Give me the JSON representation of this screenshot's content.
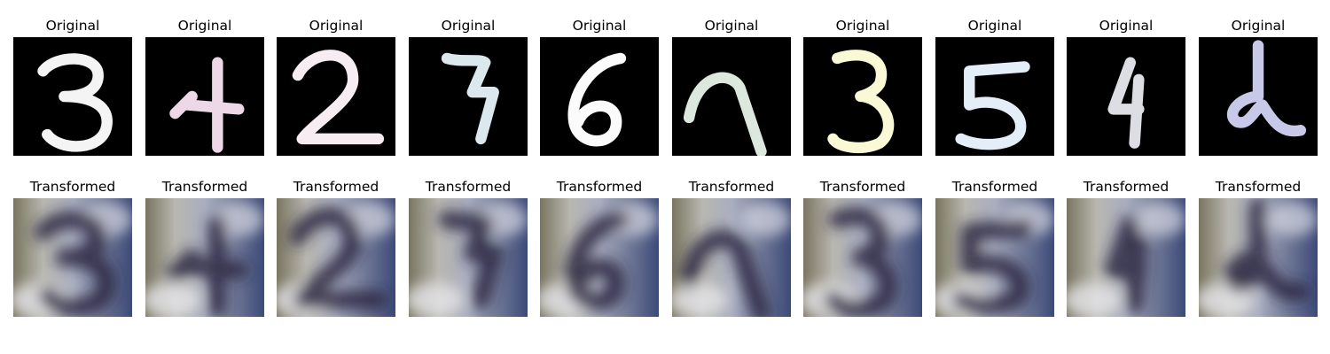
{
  "figure": {
    "original_title": "Original",
    "transformed_title": "Transformed",
    "digits": [
      {
        "digit": "3",
        "ink": "#f4f4f4"
      },
      {
        "digit": "4",
        "ink": "#ecd8e6"
      },
      {
        "digit": "2",
        "ink": "#f6ecf2"
      },
      {
        "digit": "7",
        "ink": "#dbe9ef"
      },
      {
        "digit": "6",
        "ink": "#fbfbfb"
      },
      {
        "digit": "9",
        "ink": "#dce8dd"
      },
      {
        "digit": "3",
        "ink": "#f9f9d6"
      },
      {
        "digit": "5",
        "ink": "#e4eef8"
      },
      {
        "digit": "4",
        "ink": "#dddde4"
      },
      {
        "digit": "2",
        "ink": "#c8c8e8"
      }
    ]
  }
}
